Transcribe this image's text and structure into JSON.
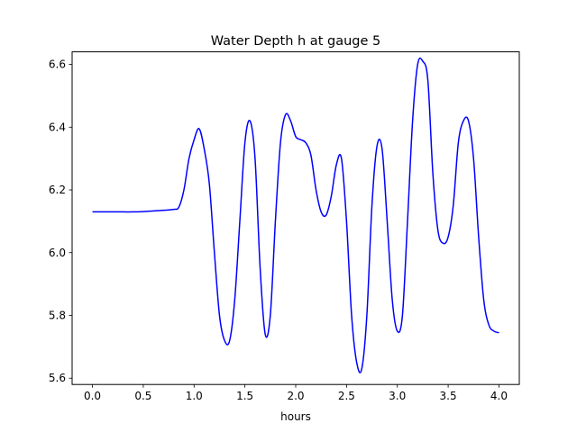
{
  "chart_data": {
    "type": "line",
    "title": "Water Depth h at gauge 5",
    "xlabel": "hours",
    "ylabel": "",
    "xlim": [
      -0.2,
      4.2
    ],
    "ylim": [
      5.58,
      6.64
    ],
    "xticks": [
      0.0,
      0.5,
      1.0,
      1.5,
      2.0,
      2.5,
      3.0,
      3.5,
      4.0
    ],
    "xtick_labels": [
      "0.0",
      "0.5",
      "1.0",
      "1.5",
      "2.0",
      "2.5",
      "3.0",
      "3.5",
      "4.0"
    ],
    "yticks": [
      5.6,
      5.8,
      6.0,
      6.2,
      6.4,
      6.6
    ],
    "ytick_labels": [
      "5.6",
      "5.8",
      "6.0",
      "6.2",
      "6.4",
      "6.6"
    ],
    "grid": false,
    "series": [
      {
        "color": "#0000ff",
        "x": [
          0.0,
          0.1,
          0.2,
          0.3,
          0.4,
          0.5,
          0.6,
          0.7,
          0.8,
          0.85,
          0.9,
          0.95,
          1.0,
          1.05,
          1.1,
          1.15,
          1.2,
          1.25,
          1.3,
          1.35,
          1.4,
          1.45,
          1.5,
          1.55,
          1.6,
          1.65,
          1.7,
          1.75,
          1.8,
          1.85,
          1.9,
          1.95,
          2.0,
          2.05,
          2.1,
          2.15,
          2.2,
          2.25,
          2.3,
          2.35,
          2.4,
          2.45,
          2.5,
          2.55,
          2.6,
          2.65,
          2.7,
          2.75,
          2.8,
          2.85,
          2.9,
          2.95,
          3.0,
          3.05,
          3.1,
          3.15,
          3.2,
          3.25,
          3.3,
          3.35,
          3.4,
          3.45,
          3.5,
          3.55,
          3.6,
          3.65,
          3.7,
          3.75,
          3.8,
          3.85,
          3.9,
          3.95,
          4.0
        ],
        "y": [
          6.13,
          6.13,
          6.13,
          6.13,
          6.13,
          6.131,
          6.133,
          6.135,
          6.138,
          6.145,
          6.2,
          6.3,
          6.36,
          6.395,
          6.33,
          6.22,
          6.0,
          5.8,
          5.72,
          5.72,
          5.85,
          6.1,
          6.35,
          6.42,
          6.3,
          5.95,
          5.74,
          5.8,
          6.1,
          6.35,
          6.44,
          6.42,
          6.37,
          6.36,
          6.35,
          6.31,
          6.2,
          6.13,
          6.12,
          6.18,
          6.28,
          6.3,
          6.1,
          5.8,
          5.65,
          5.63,
          5.8,
          6.15,
          6.34,
          6.33,
          6.1,
          5.85,
          5.75,
          5.8,
          6.1,
          6.42,
          6.6,
          6.61,
          6.55,
          6.25,
          6.07,
          6.03,
          6.05,
          6.15,
          6.35,
          6.42,
          6.42,
          6.3,
          6.05,
          5.85,
          5.77,
          5.75,
          5.745
        ]
      }
    ]
  }
}
